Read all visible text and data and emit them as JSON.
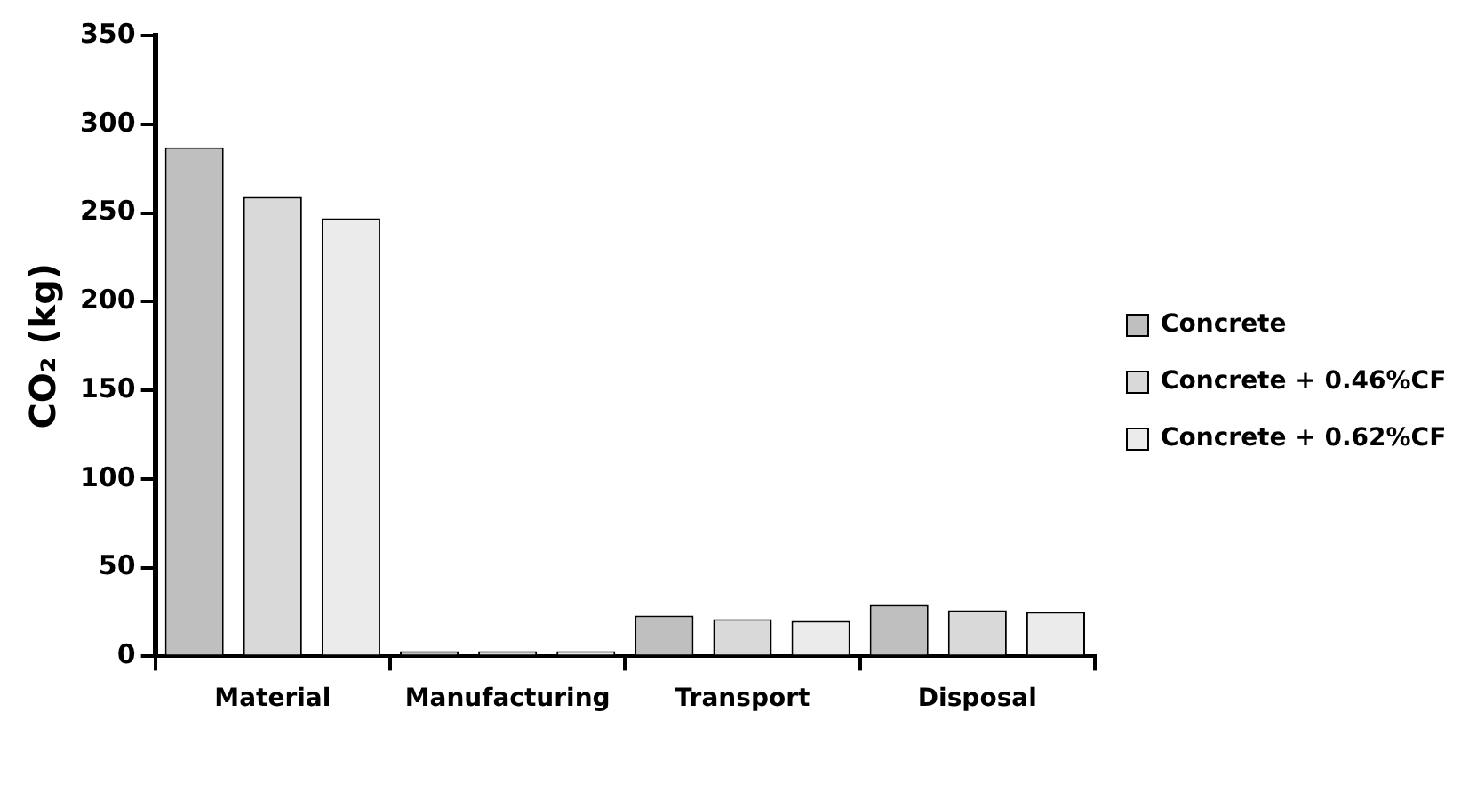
{
  "chart_data": {
    "type": "bar",
    "ylabel": "CO₂ (kg)",
    "categories": [
      "Material",
      "Manufacturing",
      "Transport",
      "Disposal"
    ],
    "series": [
      {
        "name": "Concrete",
        "color": "#bfbfbf",
        "values": [
          287,
          3,
          23,
          29
        ]
      },
      {
        "name": "Concrete + 0.46%CF",
        "color": "#d9d9d9",
        "values": [
          259,
          3,
          21,
          26
        ]
      },
      {
        "name": "Concrete + 0.62%CF",
        "color": "#ebebeb",
        "values": [
          247,
          3,
          20,
          25
        ]
      }
    ],
    "ylim": [
      0,
      350
    ],
    "yticks": [
      0,
      50,
      100,
      150,
      200,
      250,
      300,
      350
    ],
    "grid": false,
    "legend": "right"
  }
}
